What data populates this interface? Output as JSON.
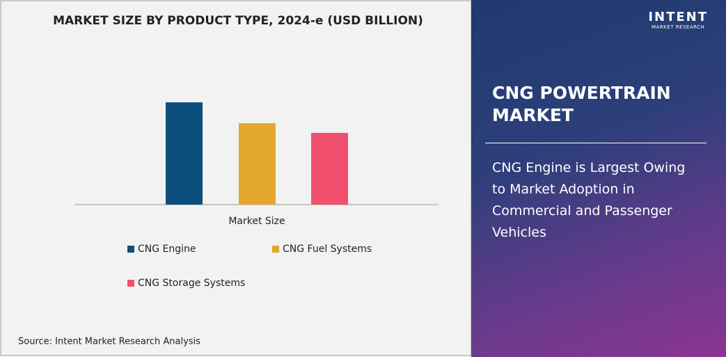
{
  "chart_data": {
    "type": "bar",
    "title": "MARKET SIZE BY PRODUCT TYPE, 2024-e (USD BILLION)",
    "categories": [
      "Market Size"
    ],
    "series": [
      {
        "name": "CNG Engine",
        "color": "#0d4f7c",
        "values": [
          147
        ]
      },
      {
        "name": "CNG Fuel Systems",
        "color": "#e3a72f",
        "values": [
          117
        ]
      },
      {
        "name": "CNG Storage Systems",
        "color": "#f0506e",
        "values": [
          103
        ]
      }
    ]
  },
  "source": "Source: Intent Market Research Analysis",
  "panel": {
    "logo": "INTENT",
    "logo_sub": "MARKET RESEARCH",
    "heading": "CNG POWERTRAIN MARKET",
    "text": "CNG Engine is Largest Owing to Market Adoption in Commercial and Passenger Vehicles"
  }
}
